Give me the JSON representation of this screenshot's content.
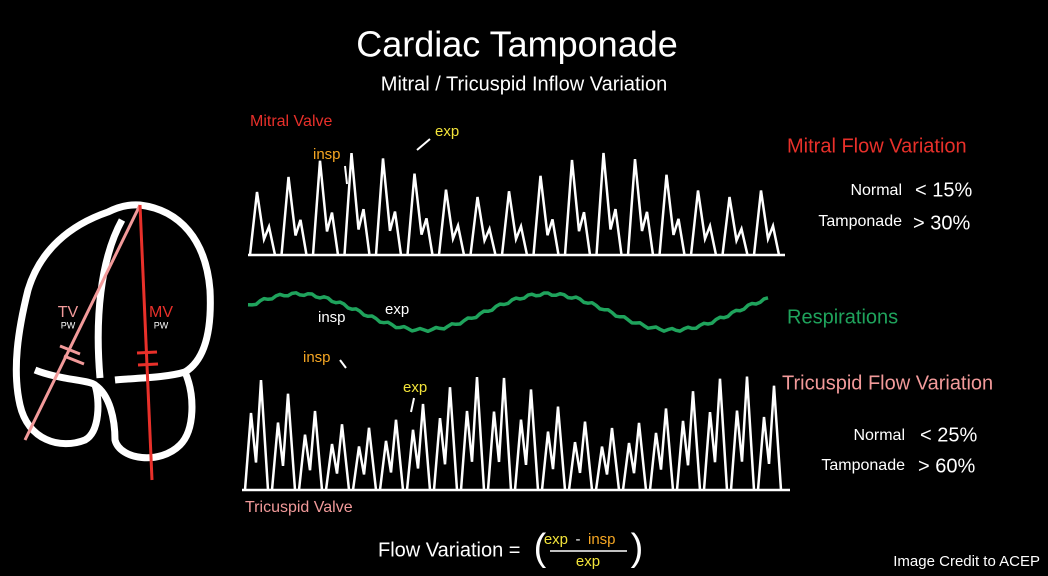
{
  "title": "Cardiac Tamponade",
  "subtitle": "Mitral / Tricuspid Inflow Variation",
  "mitral": {
    "label": "Mitral Valve",
    "insp": "insp",
    "exp": "exp",
    "heading": "Mitral Flow Variation",
    "rows": [
      [
        "Normal",
        "< 15%"
      ],
      [
        "Tamponade",
        "> 30%"
      ]
    ]
  },
  "respirations": {
    "label": "Respirations",
    "insp": "insp",
    "exp": "exp"
  },
  "tricuspid": {
    "label": "Tricuspid Valve",
    "insp": "insp",
    "exp": "exp",
    "heading": "Tricuspid Flow Variation",
    "rows": [
      [
        "Normal",
        "< 25%"
      ],
      [
        "Tamponade",
        "> 60%"
      ]
    ]
  },
  "heart": {
    "tv": "TV",
    "tv_mode": "PW",
    "mv": "MV",
    "mv_mode": "PW"
  },
  "formula": {
    "lhs": "Flow Variation =",
    "num_exp": "exp",
    "minus": "-",
    "num_insp": "insp",
    "denominator": "exp"
  },
  "credit": "Image Credit to ACEP"
}
